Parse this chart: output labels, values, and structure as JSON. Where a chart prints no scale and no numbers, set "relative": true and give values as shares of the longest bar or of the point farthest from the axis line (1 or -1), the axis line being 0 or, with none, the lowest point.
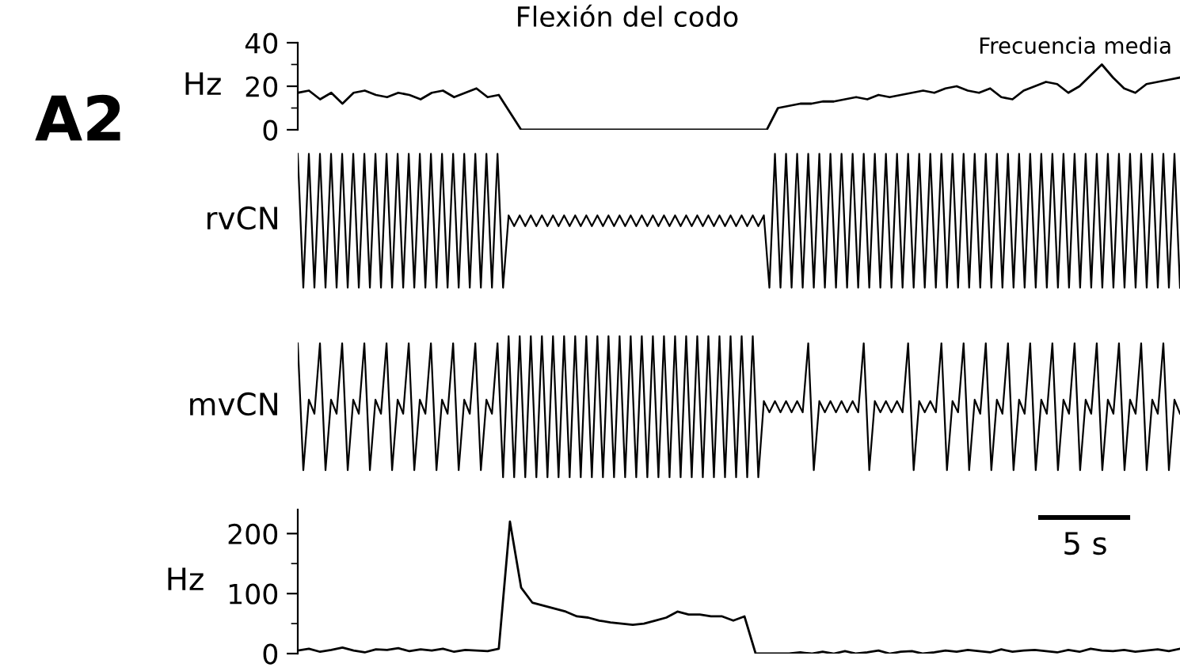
{
  "chart_data": [
    {
      "type": "line",
      "title": "Flexión del codo",
      "ylabel": "Hz",
      "annotations": [
        "A2",
        "Frecuencia media"
      ],
      "categories": [
        null,
        null,
        null,
        null,
        null,
        null,
        null,
        null,
        null,
        null,
        null,
        null,
        null,
        null,
        null,
        null,
        null,
        null,
        null,
        null,
        null,
        null,
        null,
        null,
        null,
        null,
        null,
        null,
        null,
        null,
        null,
        null,
        null,
        null,
        null,
        null,
        null,
        null,
        null,
        null,
        null,
        null,
        null,
        null,
        null,
        null,
        null,
        null,
        null,
        null,
        null,
        null,
        null,
        null,
        null,
        null,
        null,
        null,
        null,
        null,
        null,
        null,
        null,
        null,
        null,
        null,
        null,
        null,
        null,
        null,
        null,
        null,
        null,
        null,
        null,
        null,
        null,
        null,
        null,
        null
      ],
      "series": [
        {
          "color": "#000000",
          "values": [
            17,
            18,
            14,
            17,
            12,
            17,
            18,
            16,
            15,
            17,
            16,
            14,
            17,
            18,
            15,
            17,
            19,
            15,
            16,
            8,
            0,
            0,
            0,
            0,
            0,
            0,
            0,
            0,
            0,
            0,
            0,
            0,
            0,
            0,
            0,
            0,
            0,
            0,
            0,
            0,
            0,
            0,
            0,
            10,
            11,
            12,
            12,
            13,
            13,
            14,
            15,
            14,
            16,
            15,
            16,
            17,
            18,
            17,
            19,
            20,
            18,
            17,
            19,
            15,
            14,
            18,
            20,
            22,
            21,
            17,
            20,
            25,
            30,
            24,
            19,
            17,
            21,
            22,
            23,
            24
          ]
        }
      ],
      "ylim": [
        0,
        40
      ],
      "yticks": [
        0,
        20,
        40
      ],
      "tick_labels": "y"
    },
    {
      "type": "line",
      "ylabel": "rvCN",
      "relative": true,
      "tick_labels": false,
      "categories": [
        null,
        null,
        null,
        null,
        null,
        null,
        null,
        null,
        null,
        null,
        null,
        null,
        null,
        null,
        null,
        null,
        null,
        null,
        null,
        null,
        null,
        null,
        null,
        null,
        null,
        null,
        null,
        null,
        null,
        null,
        null,
        null,
        null,
        null,
        null,
        null,
        null,
        null,
        null,
        null,
        null,
        null,
        null,
        null,
        null,
        null,
        null,
        null,
        null,
        null,
        null,
        null,
        null,
        null,
        null,
        null,
        null,
        null,
        null,
        null,
        null,
        null,
        null,
        null,
        null,
        null,
        null,
        null,
        null,
        null,
        null,
        null,
        null,
        null,
        null,
        null,
        null,
        null,
        null,
        null,
        null,
        null,
        null,
        null,
        null,
        null,
        null,
        null,
        null,
        null,
        null,
        null,
        null,
        null,
        null,
        null,
        null,
        null,
        null,
        null,
        null,
        null,
        null,
        null,
        null,
        null,
        null,
        null,
        null,
        null,
        null,
        null,
        null,
        null,
        null,
        null,
        null,
        null,
        null,
        null,
        null,
        null,
        null,
        null,
        null,
        null,
        null,
        null,
        null,
        null,
        null,
        null,
        null,
        null,
        null,
        null,
        null,
        null,
        null,
        null,
        null,
        null,
        null,
        null,
        null,
        null,
        null,
        null,
        null,
        null,
        null,
        null,
        null,
        null,
        null,
        null,
        null,
        null,
        null,
        null
      ],
      "series": [
        {
          "color": "#000000",
          "values": [
            1,
            0,
            1,
            0,
            1,
            0,
            1,
            0,
            1,
            0,
            1,
            0,
            1,
            0,
            1,
            0,
            1,
            0,
            1,
            0,
            1,
            0,
            1,
            0,
            1,
            0,
            1,
            0,
            1,
            0,
            1,
            0,
            1,
            0,
            1,
            0,
            1,
            0,
            0.54,
            0.46,
            0.54,
            0.46,
            0.54,
            0.46,
            0.54,
            0.46,
            0.54,
            0.46,
            0.54,
            0.46,
            0.54,
            0.46,
            0.54,
            0.46,
            0.54,
            0.46,
            0.54,
            0.46,
            0.54,
            0.46,
            0.54,
            0.46,
            0.54,
            0.46,
            0.54,
            0.46,
            0.54,
            0.46,
            0.54,
            0.46,
            0.54,
            0.46,
            0.54,
            0.46,
            0.54,
            0.46,
            0.54,
            0.46,
            0.54,
            0.46,
            0.54,
            0.46,
            0.54,
            0.46,
            0.54,
            0,
            1,
            0,
            1,
            0,
            1,
            0,
            1,
            0,
            1,
            0,
            1,
            0,
            1,
            0,
            1,
            0,
            1,
            0,
            1,
            0,
            1,
            0,
            1,
            0,
            1,
            0,
            1,
            0,
            1,
            0,
            1,
            0,
            1,
            0,
            1,
            0,
            1,
            0,
            1,
            0,
            1,
            0,
            1,
            0,
            1,
            0,
            1,
            0,
            1,
            0,
            1,
            0,
            1,
            0,
            1,
            0,
            1,
            0,
            1,
            0,
            1,
            0,
            1,
            0,
            1,
            0,
            1,
            0,
            1,
            0,
            1,
            0,
            1,
            0
          ]
        }
      ]
    },
    {
      "type": "line",
      "ylabel": "mvCN",
      "relative": true,
      "tick_labels": false,
      "categories": [
        null,
        null,
        null,
        null,
        null,
        null,
        null,
        null,
        null,
        null,
        null,
        null,
        null,
        null,
        null,
        null,
        null,
        null,
        null,
        null,
        null,
        null,
        null,
        null,
        null,
        null,
        null,
        null,
        null,
        null,
        null,
        null,
        null,
        null,
        null,
        null,
        null,
        null,
        null,
        null,
        null,
        null,
        null,
        null,
        null,
        null,
        null,
        null,
        null,
        null,
        null,
        null,
        null,
        null,
        null,
        null,
        null,
        null,
        null,
        null,
        null,
        null,
        null,
        null,
        null,
        null,
        null,
        null,
        null,
        null,
        null,
        null,
        null,
        null,
        null,
        null,
        null,
        null,
        null,
        null,
        null,
        null,
        null,
        null,
        null,
        null,
        null,
        null,
        null,
        null,
        null,
        null,
        null,
        null,
        null,
        null,
        null,
        null,
        null,
        null,
        null,
        null,
        null,
        null,
        null,
        null,
        null,
        null,
        null,
        null,
        null,
        null,
        null,
        null,
        null,
        null,
        null,
        null,
        null,
        null,
        null,
        null,
        null,
        null,
        null,
        null,
        null,
        null,
        null,
        null,
        null,
        null,
        null,
        null,
        null,
        null,
        null,
        null,
        null,
        null,
        null,
        null,
        null,
        null,
        null,
        null,
        null,
        null,
        null,
        null,
        null,
        null,
        null,
        null,
        null,
        null,
        null,
        null,
        null,
        null
      ],
      "series": [
        {
          "color": "#000000",
          "values": [
            0.95,
            0.05,
            0.55,
            0.45,
            0.95,
            0.05,
            0.55,
            0.45,
            0.95,
            0.05,
            0.55,
            0.45,
            0.95,
            0.05,
            0.55,
            0.45,
            0.95,
            0.05,
            0.55,
            0.45,
            0.95,
            0.05,
            0.55,
            0.45,
            0.95,
            0.05,
            0.55,
            0.45,
            0.95,
            0.05,
            0.55,
            0.45,
            0.95,
            0.05,
            0.55,
            0.45,
            0.95,
            0,
            1,
            0,
            1,
            0,
            1,
            0,
            1,
            0,
            1,
            0,
            1,
            0,
            1,
            0,
            1,
            0,
            1,
            0,
            1,
            0,
            1,
            0,
            1,
            0,
            1,
            0,
            1,
            0,
            1,
            0,
            1,
            0,
            1,
            0,
            1,
            0,
            1,
            0,
            1,
            0,
            1,
            0,
            1,
            0,
            1,
            0,
            0.54,
            0.46,
            0.54,
            0.46,
            0.54,
            0.46,
            0.54,
            0.46,
            0.95,
            0.05,
            0.54,
            0.46,
            0.54,
            0.46,
            0.54,
            0.46,
            0.54,
            0.46,
            0.95,
            0.05,
            0.54,
            0.46,
            0.54,
            0.46,
            0.54,
            0.46,
            0.95,
            0.05,
            0.54,
            0.46,
            0.54,
            0.46,
            0.95,
            0.05,
            0.54,
            0.46,
            0.95,
            0.05,
            0.55,
            0.45,
            0.95,
            0.05,
            0.55,
            0.45,
            0.95,
            0.05,
            0.55,
            0.45,
            0.95,
            0.05,
            0.55,
            0.45,
            0.95,
            0.05,
            0.55,
            0.45,
            0.95,
            0.05,
            0.55,
            0.45,
            0.95,
            0.05,
            0.55,
            0.45,
            0.95,
            0.05,
            0.55,
            0.45,
            0.95,
            0.05,
            0.55,
            0.45,
            0.95,
            0.05,
            0.55,
            0.45
          ]
        }
      ]
    },
    {
      "type": "line",
      "ylabel": "Hz",
      "annotations": [
        "5 s"
      ],
      "categories": [
        null,
        null,
        null,
        null,
        null,
        null,
        null,
        null,
        null,
        null,
        null,
        null,
        null,
        null,
        null,
        null,
        null,
        null,
        null,
        null,
        null,
        null,
        null,
        null,
        null,
        null,
        null,
        null,
        null,
        null,
        null,
        null,
        null,
        null,
        null,
        null,
        null,
        null,
        null,
        null,
        null,
        null,
        null,
        null,
        null,
        null,
        null,
        null,
        null,
        null,
        null,
        null,
        null,
        null,
        null,
        null,
        null,
        null,
        null,
        null,
        null,
        null,
        null,
        null,
        null,
        null,
        null,
        null,
        null,
        null,
        null,
        null,
        null,
        null,
        null,
        null,
        null,
        null,
        null,
        null
      ],
      "series": [
        {
          "color": "#000000",
          "values": [
            5,
            8,
            3,
            6,
            10,
            5,
            2,
            7,
            6,
            9,
            4,
            7,
            5,
            8,
            3,
            6,
            5,
            4,
            8,
            220,
            110,
            85,
            80,
            75,
            70,
            62,
            60,
            55,
            52,
            50,
            48,
            50,
            55,
            60,
            70,
            65,
            65,
            62,
            62,
            55,
            62,
            0,
            0,
            0,
            0,
            2,
            0,
            3,
            0,
            4,
            0,
            2,
            5,
            0,
            3,
            4,
            0,
            2,
            5,
            3,
            6,
            4,
            2,
            7,
            3,
            5,
            6,
            4,
            2,
            6,
            3,
            8,
            5,
            4,
            6,
            3,
            5,
            7,
            4,
            8
          ]
        }
      ],
      "ylim": [
        0,
        240
      ],
      "yticks": [
        0,
        100,
        200
      ],
      "tick_labels": "y"
    }
  ]
}
